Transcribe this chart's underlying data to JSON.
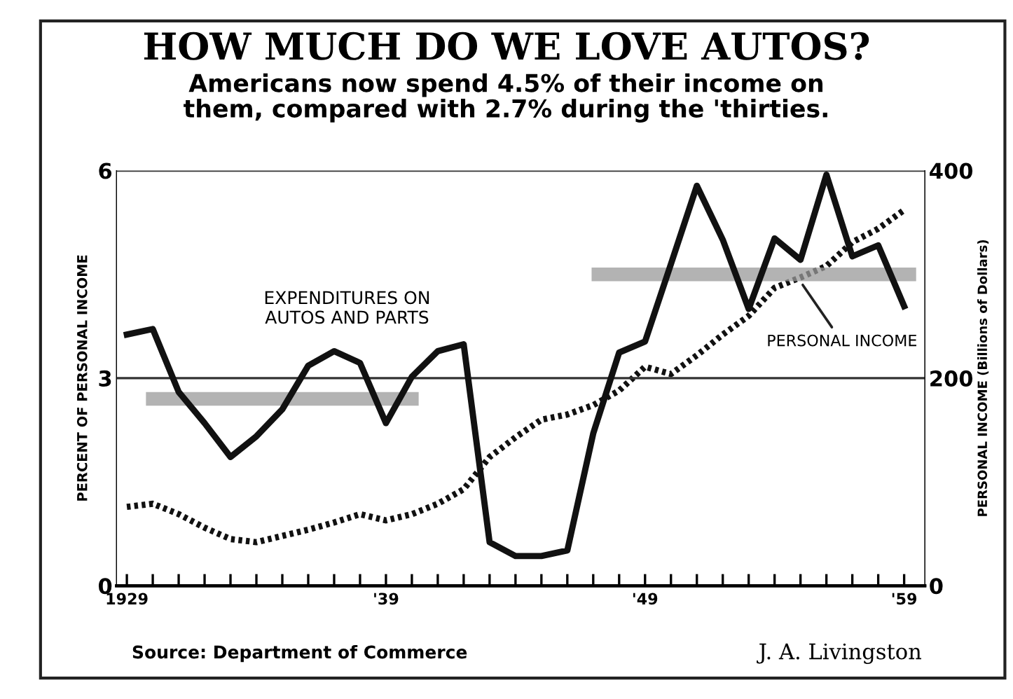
{
  "chart_data": {
    "type": "line",
    "title": "HOW MUCH DO WE LOVE AUTOS?",
    "subtitle": "Americans now spend 4.5% of their income on\nthem, compared with 2.7% during the 'thirties.",
    "ylabel": "PERCENT OF PERSONAL INCOME",
    "y2label": "PERSONAL INCOME (Billions of Dollars)",
    "x": [
      1929,
      1930,
      1931,
      1932,
      1933,
      1934,
      1935,
      1936,
      1937,
      1938,
      1939,
      1940,
      1941,
      1942,
      1943,
      1944,
      1945,
      1946,
      1947,
      1948,
      1949,
      1950,
      1951,
      1952,
      1953,
      1954,
      1955,
      1956,
      1957,
      1958,
      1959
    ],
    "series": [
      {
        "name": "EXPENDITURES ON\nAUTOS AND PARTS",
        "color": "#111111",
        "line_style": "solid",
        "values": [
          3.63,
          3.71,
          2.8,
          2.35,
          1.86,
          2.16,
          2.55,
          3.18,
          3.39,
          3.22,
          2.35,
          3.02,
          3.39,
          3.49,
          0.63,
          0.43,
          0.43,
          0.51,
          2.2,
          3.37,
          3.53,
          4.65,
          5.78,
          5.0,
          4.0,
          5.02,
          4.71,
          5.94,
          4.76,
          4.92,
          4.04
        ]
      },
      {
        "name": "PERSONAL INCOME",
        "color": "#111111",
        "line_style": "dotted",
        "axis": "y2",
        "values": [
          76,
          79,
          69,
          56,
          45,
          42,
          48,
          54,
          61,
          69,
          63,
          69,
          79,
          93,
          124,
          143,
          160,
          165,
          174,
          188,
          211,
          204,
          222,
          242,
          260,
          287,
          297,
          308,
          331,
          344,
          362
        ]
      },
      {
        "color": "#999999",
        "line_style": "solid",
        "x": [
          1930,
          1940
        ],
        "values": [
          2.7,
          2.7
        ]
      },
      {
        "color": "#999999",
        "line_style": "solid",
        "x": [
          1947.2,
          1959.2
        ],
        "values": [
          4.5,
          4.5
        ]
      }
    ],
    "xlim": [
      1928.6,
      1959.8
    ],
    "xticks": [
      {
        "value": 1929,
        "label": "1929"
      },
      {
        "value": 1930,
        "label": null
      },
      {
        "value": 1931,
        "label": null
      },
      {
        "value": 1932,
        "label": null
      },
      {
        "value": 1933,
        "label": null
      },
      {
        "value": 1934,
        "label": null
      },
      {
        "value": 1935,
        "label": null
      },
      {
        "value": 1936,
        "label": null
      },
      {
        "value": 1937,
        "label": null
      },
      {
        "value": 1938,
        "label": null
      },
      {
        "value": 1939,
        "label": "'39"
      },
      {
        "value": 1940,
        "label": null
      },
      {
        "value": 1941,
        "label": null
      },
      {
        "value": 1942,
        "label": null
      },
      {
        "value": 1943,
        "label": null
      },
      {
        "value": 1944,
        "label": null
      },
      {
        "value": 1945,
        "label": null
      },
      {
        "value": 1946,
        "label": null
      },
      {
        "value": 1947,
        "label": null
      },
      {
        "value": 1948,
        "label": null
      },
      {
        "value": 1949,
        "label": "'49"
      },
      {
        "value": 1950,
        "label": null
      },
      {
        "value": 1951,
        "label": null
      },
      {
        "value": 1952,
        "label": null
      },
      {
        "value": 1953,
        "label": null
      },
      {
        "value": 1954,
        "label": null
      },
      {
        "value": 1955,
        "label": null
      },
      {
        "value": 1956,
        "label": null
      },
      {
        "value": 1957,
        "label": null
      },
      {
        "value": 1958,
        "label": null
      },
      {
        "value": 1959,
        "label": "'59"
      }
    ],
    "ylim": [
      0,
      6
    ],
    "yticks": [
      0,
      3,
      6
    ],
    "y2lim": [
      0,
      400
    ],
    "y2ticks": [
      0,
      200,
      400
    ],
    "grid": "y",
    "legend": false,
    "marker": "none",
    "annotations": [
      "Source: Department of Commerce",
      "J. A. Livingston"
    ]
  }
}
